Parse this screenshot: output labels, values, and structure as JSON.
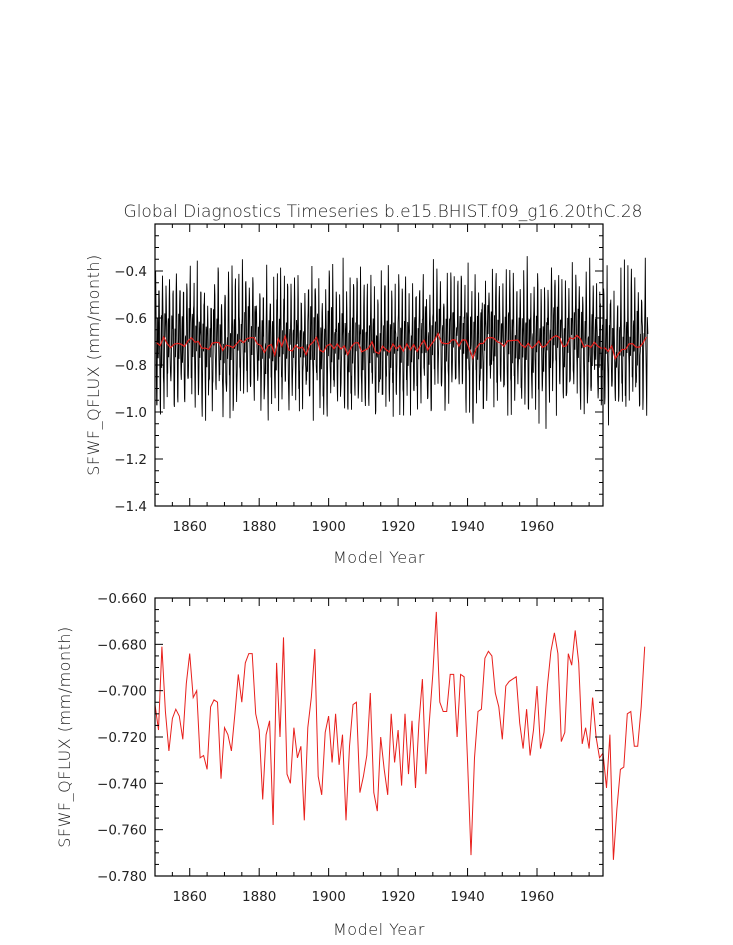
{
  "chart_data": [
    {
      "type": "line",
      "title": "Global Diagnostics Timeseries b.e15.BHIST.f09_g16.20thC.28",
      "xlabel": "Model Year",
      "ylabel": "SFWF_QFLUX (mm/month)",
      "xlim": [
        1850,
        1979
      ],
      "ylim": [
        -1.4,
        -0.2
      ],
      "x_ticks": [
        "1860",
        "1880",
        "1900",
        "1920",
        "1940",
        "1960"
      ],
      "y_ticks": [
        "-0.4",
        "-0.6",
        "-0.8",
        "-1.0",
        "-1.2",
        "-1.4"
      ],
      "series": [
        {
          "color": "#000000",
          "description": "monthly values, oscillating roughly between -1.2 and -0.35 around a mean near -0.72"
        },
        {
          "color": "#e8201c",
          "description": "annual mean (same values as lower panel)"
        }
      ]
    },
    {
      "type": "line",
      "title": "",
      "xlabel": "Model Year",
      "ylabel": "SFWF_QFLUX (mm/month)",
      "xlim": [
        1850,
        1979
      ],
      "ylim": [
        -0.78,
        -0.66
      ],
      "x_ticks": [
        "1860",
        "1880",
        "1900",
        "1920",
        "1940",
        "1960"
      ],
      "y_ticks": [
        "-0.660",
        "-0.680",
        "-0.700",
        "-0.720",
        "-0.740",
        "-0.760",
        "-0.780"
      ],
      "series": [
        {
          "color": "#e8201c",
          "x_start": 1850,
          "values": [
            -0.706,
            -0.717,
            -0.681,
            -0.709,
            -0.726,
            -0.712,
            -0.708,
            -0.711,
            -0.721,
            -0.697,
            -0.684,
            -0.703,
            -0.7,
            -0.729,
            -0.728,
            -0.734,
            -0.707,
            -0.704,
            -0.705,
            -0.738,
            -0.716,
            -0.719,
            -0.726,
            -0.71,
            -0.693,
            -0.705,
            -0.688,
            -0.684,
            -0.684,
            -0.71,
            -0.717,
            -0.747,
            -0.719,
            -0.713,
            -0.758,
            -0.688,
            -0.72,
            -0.677,
            -0.736,
            -0.74,
            -0.716,
            -0.729,
            -0.724,
            -0.756,
            -0.716,
            -0.703,
            -0.682,
            -0.737,
            -0.745,
            -0.718,
            -0.711,
            -0.731,
            -0.71,
            -0.732,
            -0.719,
            -0.756,
            -0.724,
            -0.706,
            -0.705,
            -0.744,
            -0.737,
            -0.728,
            -0.701,
            -0.744,
            -0.752,
            -0.72,
            -0.734,
            -0.745,
            -0.71,
            -0.731,
            -0.717,
            -0.741,
            -0.71,
            -0.736,
            -0.713,
            -0.742,
            -0.714,
            -0.695,
            -0.736,
            -0.713,
            -0.693,
            -0.666,
            -0.705,
            -0.709,
            -0.709,
            -0.693,
            -0.693,
            -0.72,
            -0.693,
            -0.694,
            -0.731,
            -0.771,
            -0.729,
            -0.709,
            -0.708,
            -0.686,
            -0.683,
            -0.685,
            -0.701,
            -0.707,
            -0.721,
            -0.698,
            -0.696,
            -0.695,
            -0.694,
            -0.714,
            -0.725,
            -0.708,
            -0.728,
            -0.717,
            -0.698,
            -0.725,
            -0.718,
            -0.698,
            -0.683,
            -0.675,
            -0.684,
            -0.722,
            -0.718,
            -0.684,
            -0.689,
            -0.674,
            -0.688,
            -0.723,
            -0.716,
            -0.725,
            -0.703,
            -0.72,
            -0.729,
            -0.727,
            -0.742,
            -0.719,
            -0.773,
            -0.751,
            -0.734,
            -0.733,
            -0.71,
            -0.709,
            -0.724,
            -0.724,
            -0.707,
            -0.681
          ]
        }
      ]
    }
  ]
}
